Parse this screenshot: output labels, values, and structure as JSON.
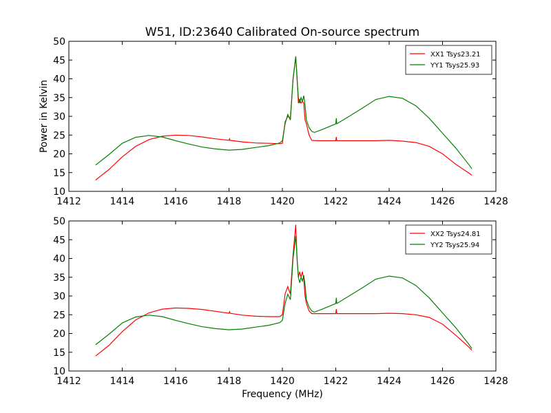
{
  "title": "W51, ID:23640 Calibrated On-source spectrum",
  "chart_data": [
    {
      "type": "line",
      "ylabel": "Power in Kelvin",
      "xlabel": "",
      "xlim": [
        1412,
        1428
      ],
      "ylim": [
        10,
        50
      ],
      "xticks": [
        1412,
        1414,
        1416,
        1418,
        1420,
        1422,
        1424,
        1426,
        1428
      ],
      "yticks": [
        10,
        15,
        20,
        25,
        30,
        35,
        40,
        45,
        50
      ],
      "legend_position": "top-right",
      "series": [
        {
          "name": "XX1 Tsys23.21",
          "color": "#ff0000",
          "x": [
            1413.0,
            1413.5,
            1414.0,
            1414.5,
            1415.0,
            1415.5,
            1416.0,
            1416.5,
            1417.0,
            1417.5,
            1418.0,
            1418.02,
            1418.04,
            1418.5,
            1419.0,
            1419.5,
            1419.9,
            1420.0,
            1420.1,
            1420.2,
            1420.3,
            1420.4,
            1420.5,
            1420.55,
            1420.6,
            1420.65,
            1420.7,
            1420.75,
            1420.8,
            1420.85,
            1420.9,
            1420.95,
            1421.0,
            1421.1,
            1421.3,
            1421.6,
            1422.0,
            1422.02,
            1422.04,
            1422.5,
            1423.0,
            1423.5,
            1424.0,
            1424.5,
            1425.0,
            1425.5,
            1426.0,
            1426.5,
            1427.0,
            1427.1
          ],
          "y": [
            13.0,
            15.8,
            19.2,
            22.0,
            23.8,
            24.7,
            25.0,
            24.9,
            24.5,
            24.0,
            23.6,
            24.0,
            23.6,
            23.2,
            22.9,
            22.8,
            22.7,
            22.8,
            28.5,
            30.0,
            29.5,
            40.0,
            45.8,
            40.5,
            33.5,
            34.5,
            33.5,
            34.0,
            33.5,
            29.0,
            28.0,
            26.5,
            25.0,
            23.6,
            23.5,
            23.5,
            23.5,
            24.5,
            23.5,
            23.5,
            23.5,
            23.5,
            23.6,
            23.4,
            23.0,
            22.0,
            20.0,
            17.2,
            14.8,
            14.3
          ]
        },
        {
          "name": "YY1 Tsys25.93",
          "color": "#008000",
          "x": [
            1413.0,
            1413.5,
            1414.0,
            1414.5,
            1415.0,
            1415.5,
            1416.0,
            1416.5,
            1417.0,
            1417.5,
            1418.0,
            1418.5,
            1419.0,
            1419.5,
            1419.9,
            1420.0,
            1420.1,
            1420.2,
            1420.3,
            1420.4,
            1420.5,
            1420.55,
            1420.6,
            1420.65,
            1420.7,
            1420.75,
            1420.8,
            1420.85,
            1420.9,
            1420.95,
            1421.0,
            1421.1,
            1421.2,
            1421.5,
            1422.0,
            1422.02,
            1422.04,
            1422.5,
            1423.0,
            1423.5,
            1424.0,
            1424.5,
            1425.0,
            1425.5,
            1426.0,
            1426.5,
            1427.0,
            1427.1
          ],
          "y": [
            17.0,
            19.8,
            22.8,
            24.4,
            24.9,
            24.5,
            23.5,
            22.6,
            21.8,
            21.3,
            21.0,
            21.2,
            21.7,
            22.2,
            22.9,
            23.5,
            28.0,
            30.5,
            29.0,
            40.0,
            46.0,
            40.0,
            35.0,
            33.5,
            35.0,
            34.0,
            35.5,
            33.0,
            29.0,
            28.0,
            27.0,
            26.0,
            25.7,
            26.5,
            28.0,
            29.5,
            28.0,
            30.0,
            32.2,
            34.5,
            35.3,
            34.8,
            32.8,
            29.5,
            25.5,
            21.5,
            17.0,
            16.0
          ]
        }
      ]
    },
    {
      "type": "line",
      "ylabel": "",
      "xlabel": "Frequency (MHz)",
      "xlim": [
        1412,
        1428
      ],
      "ylim": [
        10,
        50
      ],
      "xticks": [
        1412,
        1414,
        1416,
        1418,
        1420,
        1422,
        1424,
        1426,
        1428
      ],
      "yticks": [
        10,
        15,
        20,
        25,
        30,
        35,
        40,
        45,
        50
      ],
      "legend_position": "top-right",
      "series": [
        {
          "name": "XX2 Tsys24.81",
          "color": "#ff0000",
          "x": [
            1413.0,
            1413.5,
            1414.0,
            1414.5,
            1415.0,
            1415.5,
            1416.0,
            1416.5,
            1417.0,
            1417.5,
            1418.0,
            1418.02,
            1418.04,
            1418.5,
            1419.0,
            1419.5,
            1419.9,
            1420.0,
            1420.1,
            1420.2,
            1420.3,
            1420.4,
            1420.5,
            1420.55,
            1420.6,
            1420.65,
            1420.7,
            1420.75,
            1420.8,
            1420.85,
            1420.9,
            1420.95,
            1421.0,
            1421.1,
            1421.3,
            1421.6,
            1422.0,
            1422.02,
            1422.04,
            1422.5,
            1423.0,
            1423.5,
            1424.0,
            1424.5,
            1425.0,
            1425.5,
            1426.0,
            1426.5,
            1427.0,
            1427.1
          ],
          "y": [
            14.0,
            16.8,
            20.5,
            23.6,
            25.5,
            26.5,
            26.8,
            26.7,
            26.4,
            25.9,
            25.4,
            25.8,
            25.4,
            24.9,
            24.6,
            24.5,
            24.5,
            25.0,
            30.5,
            32.5,
            30.5,
            41.0,
            49.0,
            40.0,
            35.0,
            36.5,
            35.0,
            36.5,
            34.5,
            30.0,
            28.0,
            27.0,
            26.0,
            25.3,
            25.3,
            25.3,
            25.3,
            26.5,
            25.3,
            25.3,
            25.3,
            25.3,
            25.4,
            25.3,
            25.0,
            24.3,
            22.5,
            19.5,
            16.3,
            15.5
          ]
        },
        {
          "name": "YY2 Tsys25.94",
          "color": "#008000",
          "x": [
            1413.0,
            1413.5,
            1414.0,
            1414.5,
            1415.0,
            1415.5,
            1416.0,
            1416.5,
            1417.0,
            1417.5,
            1418.0,
            1418.5,
            1419.0,
            1419.5,
            1419.9,
            1420.0,
            1420.1,
            1420.2,
            1420.3,
            1420.4,
            1420.5,
            1420.55,
            1420.6,
            1420.65,
            1420.7,
            1420.75,
            1420.8,
            1420.85,
            1420.9,
            1420.95,
            1421.0,
            1421.1,
            1421.2,
            1421.5,
            1422.0,
            1422.02,
            1422.04,
            1422.5,
            1423.0,
            1423.5,
            1424.0,
            1424.5,
            1425.0,
            1425.5,
            1426.0,
            1426.5,
            1427.0,
            1427.1
          ],
          "y": [
            17.0,
            19.8,
            22.8,
            24.4,
            24.9,
            24.5,
            23.5,
            22.6,
            21.8,
            21.3,
            21.0,
            21.2,
            21.7,
            22.2,
            22.9,
            23.5,
            28.0,
            30.5,
            29.0,
            40.0,
            46.0,
            40.0,
            35.0,
            33.5,
            35.0,
            34.0,
            35.5,
            33.0,
            29.0,
            28.0,
            27.0,
            26.0,
            25.7,
            26.5,
            28.0,
            29.5,
            28.0,
            30.0,
            32.2,
            34.5,
            35.3,
            34.8,
            32.8,
            29.5,
            25.5,
            21.5,
            17.0,
            16.0
          ]
        }
      ]
    }
  ]
}
